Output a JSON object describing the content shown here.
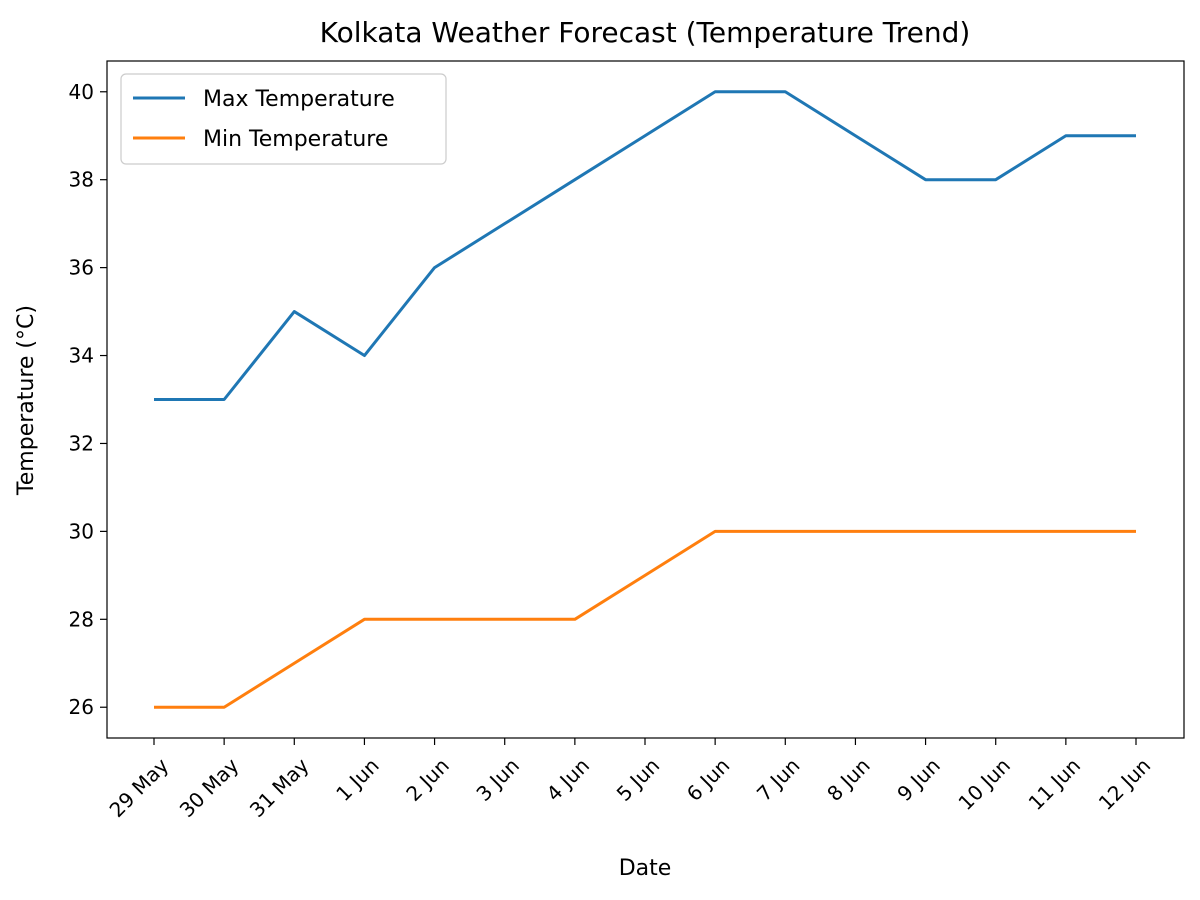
{
  "chart_data": {
    "type": "line",
    "title": "Kolkata Weather Forecast (Temperature Trend)",
    "xlabel": "Date",
    "ylabel": "Temperature (°C)",
    "categories": [
      "29 May",
      "30 May",
      "31 May",
      "1 Jun",
      "2 Jun",
      "3 Jun",
      "4 Jun",
      "5 Jun",
      "6 Jun",
      "7 Jun",
      "8 Jun",
      "9 Jun",
      "10 Jun",
      "11 Jun",
      "12 Jun"
    ],
    "ylim": [
      25.3,
      40.7
    ],
    "yticks": [
      26,
      28,
      30,
      32,
      34,
      36,
      38,
      40
    ],
    "grid": false,
    "legend_position": "top-left",
    "series": [
      {
        "name": "Max Temperature",
        "color": "#1f77b4",
        "values": [
          33,
          33,
          35,
          34,
          36,
          37,
          38,
          39,
          40,
          40,
          39,
          38,
          38,
          39,
          39
        ]
      },
      {
        "name": "Min Temperature",
        "color": "#ff7f0e",
        "values": [
          26,
          26,
          27,
          28,
          28,
          28,
          28,
          29,
          30,
          30,
          30,
          30,
          30,
          30,
          30
        ]
      }
    ]
  }
}
